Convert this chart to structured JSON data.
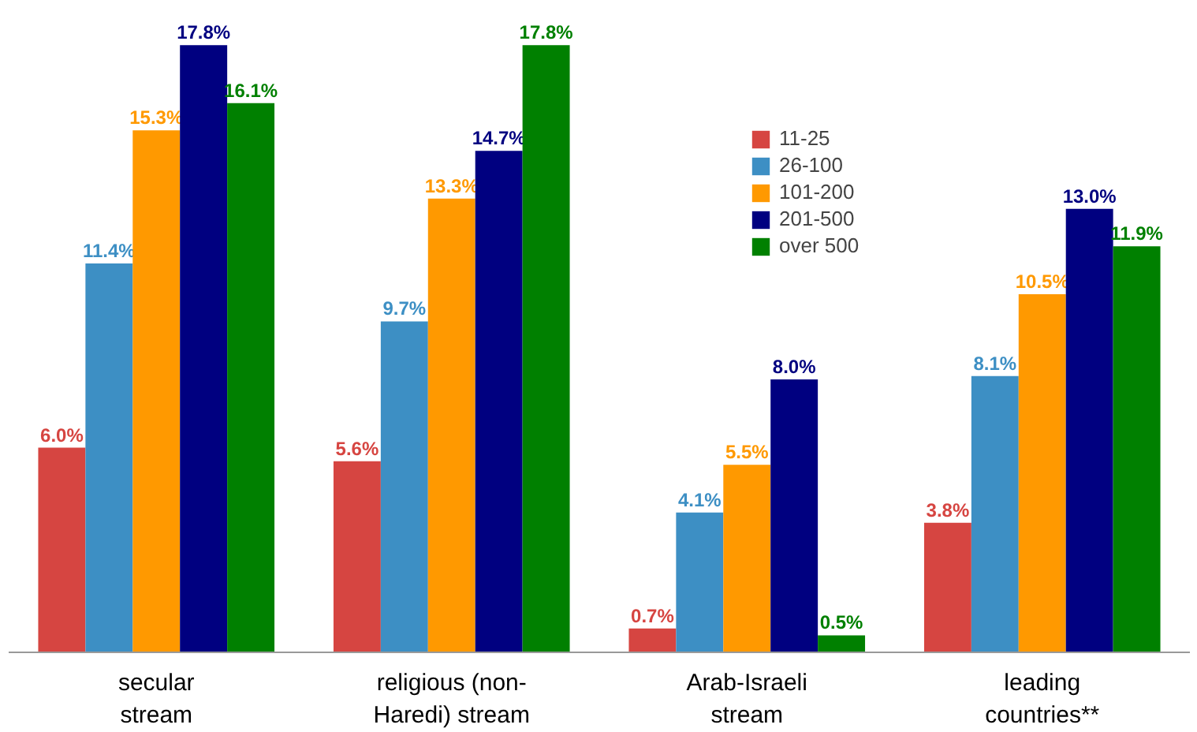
{
  "chart_data": {
    "type": "bar",
    "categories": [
      "secular\nstream",
      "religious (non-\nHaredi) stream",
      "Arab-Israeli\nstream",
      "leading\ncountries**"
    ],
    "series": [
      {
        "name": "11-25",
        "color": "#d64541",
        "values": [
          6.0,
          5.6,
          0.7,
          3.8
        ],
        "value_labels": [
          "6.0%",
          "5.6%",
          "0.7%",
          "3.8%"
        ]
      },
      {
        "name": "26-100",
        "color": "#3d8fc4",
        "values": [
          11.4,
          9.7,
          4.1,
          8.1
        ],
        "value_labels": [
          "11.4%",
          "9.7%",
          "4.1%",
          "8.1%"
        ]
      },
      {
        "name": "101-200",
        "color": "#ff9900",
        "values": [
          15.3,
          13.3,
          5.5,
          10.5
        ],
        "value_labels": [
          "15.3%",
          "13.3%",
          "5.5%",
          "10.5%"
        ]
      },
      {
        "name": "201-500",
        "color": "#000080",
        "values": [
          17.8,
          14.7,
          8.0,
          13.0
        ],
        "value_labels": [
          "17.8%",
          "14.7%",
          "8.0%",
          "13.0%"
        ]
      },
      {
        "name": "over 500",
        "color": "#008000",
        "values": [
          16.1,
          17.8,
          0.5,
          11.9
        ],
        "value_labels": [
          "16.1%",
          "17.8%",
          "0.5%",
          "11.9%"
        ]
      }
    ],
    "legend": "top",
    "grid": false
  }
}
